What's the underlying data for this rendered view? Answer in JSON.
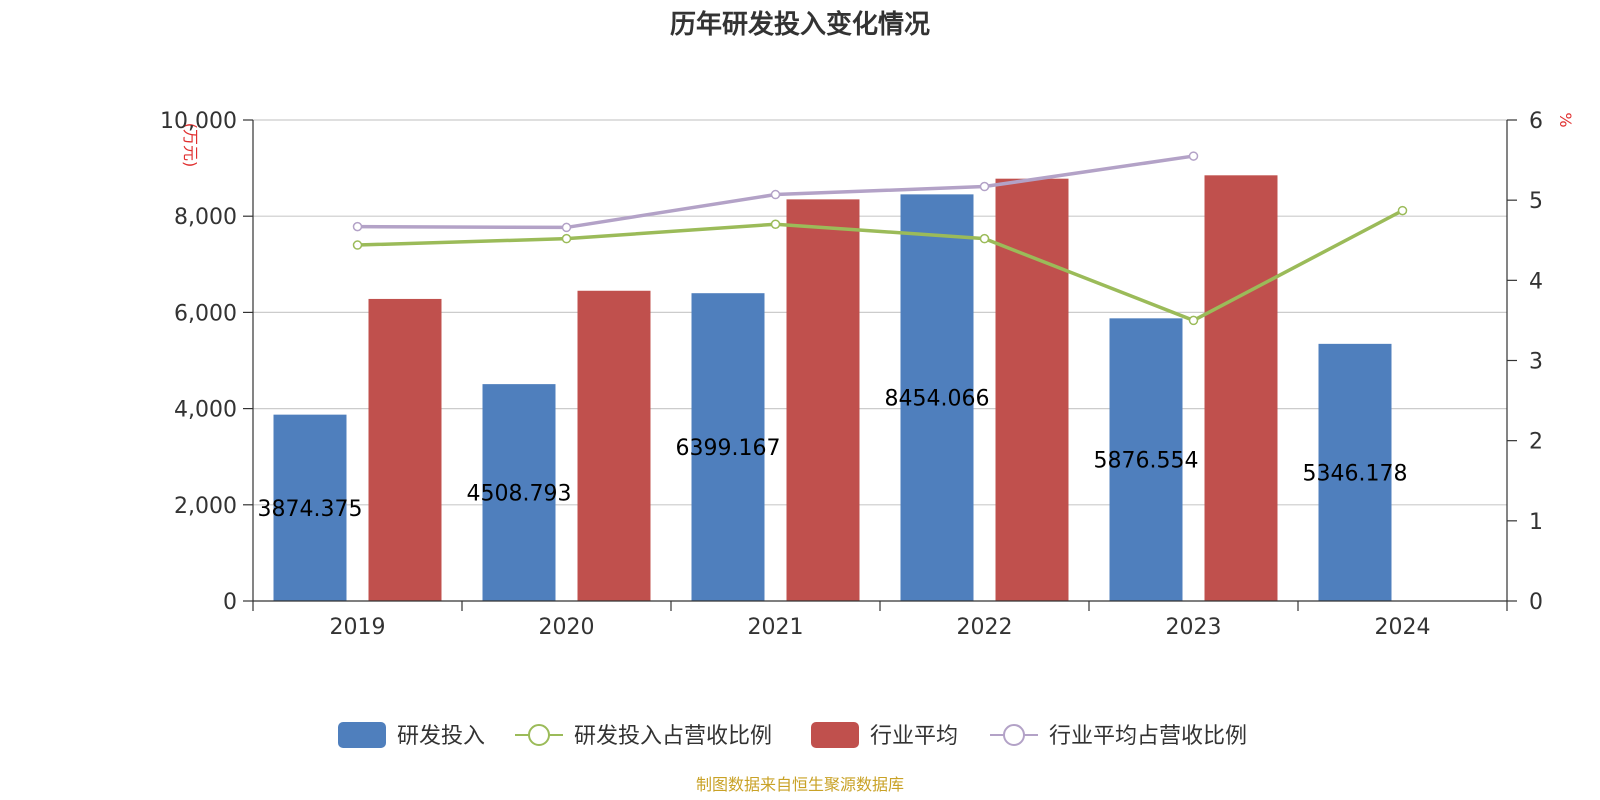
{
  "chart_data": {
    "type": "bar",
    "title": "历年研发投入变化情况",
    "categories": [
      "2019",
      "2020",
      "2021",
      "2022",
      "2023",
      "2024"
    ],
    "y_left": {
      "unit": "(万元)",
      "ylim": [
        0,
        10000
      ],
      "ticks": [
        "0",
        "2,000",
        "4,000",
        "6,000",
        "8,000",
        "10,000"
      ]
    },
    "y_right": {
      "unit": "%",
      "ylim": [
        0,
        6
      ],
      "ticks": [
        "0",
        "1",
        "2",
        "3",
        "4",
        "5",
        "6"
      ]
    },
    "series": [
      {
        "name": "研发投入",
        "kind": "bar",
        "axis": "left",
        "color": "#4f7fbd",
        "values": [
          3874.375,
          4508.793,
          6399.167,
          8454.066,
          5876.554,
          5346.178
        ],
        "labels": [
          "3874.375",
          "4508.793",
          "6399.167",
          "8454.066",
          "5876.554",
          "5346.178"
        ]
      },
      {
        "name": "研发投入占营收比例",
        "kind": "line",
        "axis": "right",
        "color": "#9bbb59",
        "values": [
          4.44,
          4.52,
          4.7,
          4.52,
          3.5,
          4.87
        ]
      },
      {
        "name": "行业平均",
        "kind": "bar",
        "axis": "left",
        "color": "#c0504d",
        "values": [
          6280,
          6450,
          8350,
          8780,
          8850,
          null
        ]
      },
      {
        "name": "行业平均占营收比例",
        "kind": "line",
        "axis": "right",
        "color": "#b3a2c7",
        "values": [
          4.67,
          4.66,
          5.07,
          5.17,
          5.55,
          null
        ]
      }
    ],
    "grid": true,
    "legend_position": "bottom"
  },
  "source_text": "制图数据来自恒生聚源数据库"
}
